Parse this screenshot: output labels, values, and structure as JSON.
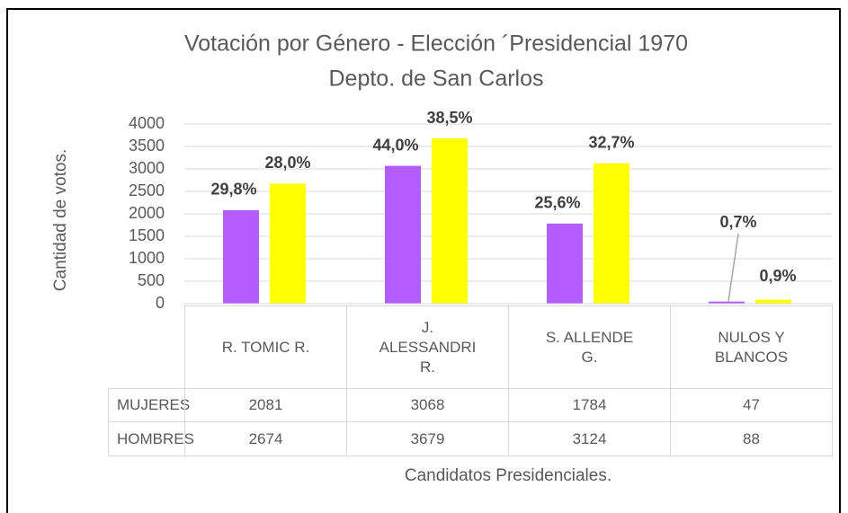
{
  "chart_data": {
    "type": "bar",
    "title": "Votación por Género - Elección ´Presidencial 1970",
    "subtitle": "Depto. de San Carlos",
    "y_label": "Cantidad de votos.",
    "x_label": "Candidatos Presidenciales.",
    "categories": [
      "R. TOMIC R.",
      "J. ALESSANDRI R.",
      "S. ALLENDE G.",
      "NULOS Y BLANCOS"
    ],
    "series": [
      {
        "name": "MUJERES",
        "color": "#b45cff",
        "values": [
          2081,
          3068,
          1784,
          47
        ],
        "labels": [
          "29,8%",
          "44,0%",
          "25,6%",
          "0,7%"
        ]
      },
      {
        "name": "HOMBRES",
        "color": "#ffff00",
        "values": [
          2674,
          3679,
          3124,
          88
        ],
        "labels": [
          "28,0%",
          "38,5%",
          "32,7%",
          "0,9%"
        ]
      }
    ],
    "ylim": [
      0,
      4000
    ],
    "yticks": [
      0,
      500,
      1000,
      1500,
      2000,
      2500,
      3000,
      3500,
      4000
    ],
    "grid": true
  }
}
